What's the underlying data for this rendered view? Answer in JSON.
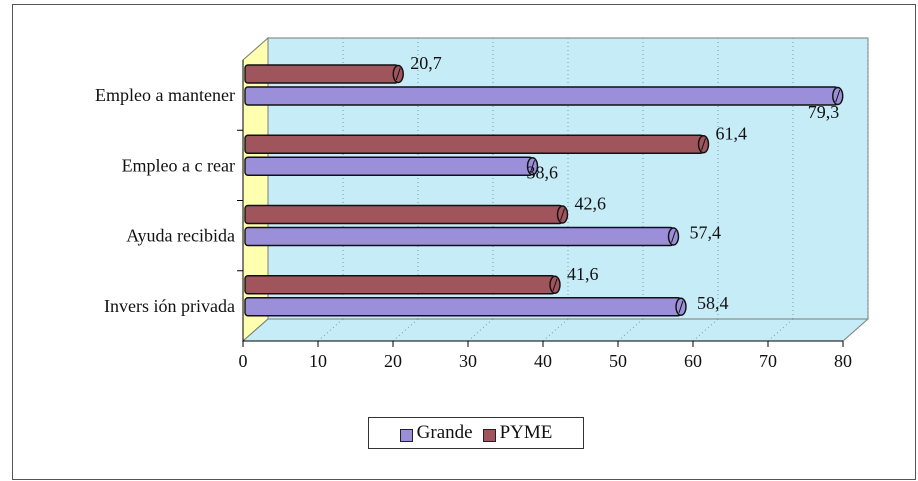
{
  "chart_data": {
    "type": "bar",
    "orientation": "horizontal",
    "categories": [
      "Empleo a mantener",
      "Empleo a crear",
      "Ayuda recibida",
      "Inversión privada"
    ],
    "category_labels": [
      "Empleo a mantener",
      "Empleo a c rear",
      "Ayuda recibida",
      "Invers ión privada"
    ],
    "series": [
      {
        "name": "PYME",
        "values": [
          20.7,
          61.4,
          42.6,
          41.6
        ],
        "labels": [
          "20,7",
          "61,4",
          "42,6",
          "41,6"
        ],
        "color": "#a0555d"
      },
      {
        "name": "Grande",
        "values": [
          79.3,
          38.6,
          57.4,
          58.4
        ],
        "labels": [
          "79,3",
          "38,6",
          "57,4",
          "58,4"
        ],
        "color": "#9a8fd8"
      }
    ],
    "xlim": [
      0,
      80
    ],
    "xticks": [
      "0",
      "10",
      "20",
      "30",
      "40",
      "50",
      "60",
      "70",
      "80"
    ],
    "grid": true,
    "legend": {
      "position": "bottom",
      "items": [
        "Grande",
        "PYME"
      ]
    },
    "colors": {
      "plot_bg": "#c6ecf7",
      "side_wall": "#ffffb0",
      "floor": "#c6ecf7",
      "grid": "#7f9aa6"
    }
  }
}
